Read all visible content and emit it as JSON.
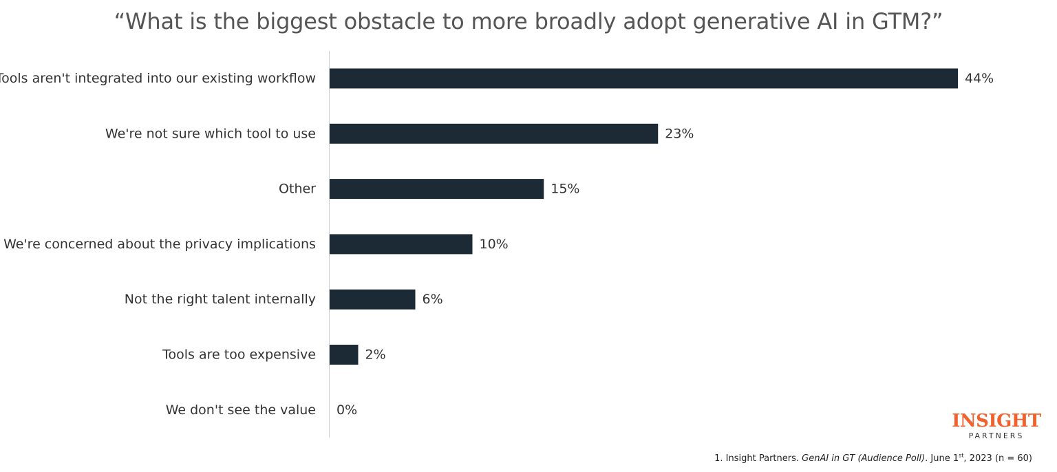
{
  "chart_data": {
    "type": "bar",
    "orientation": "horizontal",
    "title": "“What is the biggest obstacle to more broadly adopt generative AI in GTM?”",
    "categories": [
      "Tools aren't integrated into our existing workflow",
      "We're not sure which tool to use",
      "Other",
      "We're concerned about the privacy implications",
      "Not the right talent internally",
      "Tools are too expensive",
      "We don't see the value"
    ],
    "values": [
      44,
      23,
      15,
      10,
      6,
      2,
      0
    ],
    "value_labels": [
      "44%",
      "23%",
      "15%",
      "10%",
      "6%",
      "2%",
      "0%"
    ],
    "xlim": [
      0,
      44
    ],
    "grid": false,
    "bar_color": "#1b2a35"
  },
  "logo": {
    "main": "INSIGHT",
    "sub": "PARTNERS",
    "color": "#f0612d"
  },
  "footnote": {
    "prefix": "1. Insight Partners. ",
    "source_italic": "GenAI in GT (Audience Poll)",
    "date_text": ". June 1",
    "date_sup": "st",
    "suffix": ", 2023 (n = 60)"
  }
}
